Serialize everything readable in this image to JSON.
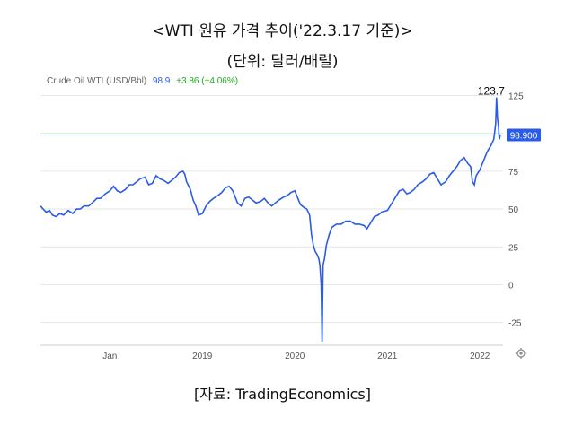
{
  "header": {
    "title": "<WTI 원유 가격 추이('22.3.17 기준)>",
    "subtitle": "(단위: 달러/배럴)"
  },
  "footer": {
    "source": "[자료: TradingEconomics]"
  },
  "legend": {
    "name": "Crude Oil WTI (USD/Bbl)",
    "last": "98.9",
    "change": "+3.86 (+4.06%)"
  },
  "colors": {
    "line": "#2b5ce6",
    "up": "#22aa22",
    "grid": "#e6e6e6",
    "price_tag_bg": "#2b5ce6"
  },
  "icons": {
    "settings": "gear-icon"
  },
  "chart_data": {
    "type": "line",
    "ylim": [
      -40,
      130
    ],
    "y_ticks": [
      125,
      100,
      75,
      50,
      25,
      0,
      -25
    ],
    "x_ticks": [
      {
        "label": "Jan",
        "x": 2018.0
      },
      {
        "label": "2019",
        "x": 2019.0
      },
      {
        "label": "2020",
        "x": 2020.0
      },
      {
        "label": "2021",
        "x": 2021.0
      },
      {
        "label": "2022",
        "x": 2022.0
      }
    ],
    "xlim": [
      2017.25,
      2022.25
    ],
    "last_value": 98.9,
    "last_value_label": "98.900",
    "annotation": {
      "label": "123.7",
      "x": 2022.18,
      "y": 123.7
    },
    "series": [
      {
        "values": [
          [
            2017.25,
            52
          ],
          [
            2017.28,
            50
          ],
          [
            2017.31,
            48
          ],
          [
            2017.35,
            49
          ],
          [
            2017.38,
            46
          ],
          [
            2017.42,
            45
          ],
          [
            2017.46,
            47
          ],
          [
            2017.5,
            46
          ],
          [
            2017.55,
            49
          ],
          [
            2017.6,
            47
          ],
          [
            2017.64,
            50
          ],
          [
            2017.68,
            50
          ],
          [
            2017.72,
            52
          ],
          [
            2017.77,
            52
          ],
          [
            2017.81,
            54
          ],
          [
            2017.86,
            57
          ],
          [
            2017.9,
            57
          ],
          [
            2017.95,
            60
          ],
          [
            2018.0,
            62
          ],
          [
            2018.04,
            65
          ],
          [
            2018.08,
            62
          ],
          [
            2018.12,
            61
          ],
          [
            2018.17,
            63
          ],
          [
            2018.21,
            66
          ],
          [
            2018.25,
            66
          ],
          [
            2018.29,
            68
          ],
          [
            2018.33,
            70
          ],
          [
            2018.38,
            71
          ],
          [
            2018.42,
            66
          ],
          [
            2018.46,
            67
          ],
          [
            2018.5,
            72
          ],
          [
            2018.54,
            70
          ],
          [
            2018.58,
            69
          ],
          [
            2018.63,
            67
          ],
          [
            2018.67,
            69
          ],
          [
            2018.71,
            71
          ],
          [
            2018.75,
            74
          ],
          [
            2018.79,
            75
          ],
          [
            2018.81,
            73
          ],
          [
            2018.83,
            68
          ],
          [
            2018.87,
            63
          ],
          [
            2018.9,
            56
          ],
          [
            2018.93,
            52
          ],
          [
            2018.96,
            46
          ],
          [
            2019.0,
            47
          ],
          [
            2019.04,
            52
          ],
          [
            2019.08,
            55
          ],
          [
            2019.12,
            57
          ],
          [
            2019.17,
            59
          ],
          [
            2019.21,
            61
          ],
          [
            2019.25,
            64
          ],
          [
            2019.29,
            65
          ],
          [
            2019.33,
            62
          ],
          [
            2019.38,
            54
          ],
          [
            2019.42,
            52
          ],
          [
            2019.46,
            57
          ],
          [
            2019.5,
            58
          ],
          [
            2019.54,
            56
          ],
          [
            2019.58,
            54
          ],
          [
            2019.63,
            55
          ],
          [
            2019.67,
            57
          ],
          [
            2019.71,
            54
          ],
          [
            2019.75,
            52
          ],
          [
            2019.79,
            54
          ],
          [
            2019.83,
            56
          ],
          [
            2019.88,
            58
          ],
          [
            2019.92,
            59
          ],
          [
            2019.96,
            61
          ],
          [
            2020.0,
            62
          ],
          [
            2020.02,
            59
          ],
          [
            2020.06,
            53
          ],
          [
            2020.1,
            51
          ],
          [
            2020.13,
            50
          ],
          [
            2020.16,
            46
          ],
          [
            2020.18,
            33
          ],
          [
            2020.2,
            26
          ],
          [
            2020.22,
            22
          ],
          [
            2020.24,
            20
          ],
          [
            2020.26,
            17
          ],
          [
            2020.27,
            13
          ],
          [
            2020.285,
            0
          ],
          [
            2020.295,
            -37.6
          ],
          [
            2020.305,
            13
          ],
          [
            2020.32,
            17
          ],
          [
            2020.34,
            26
          ],
          [
            2020.37,
            33
          ],
          [
            2020.4,
            38
          ],
          [
            2020.45,
            40
          ],
          [
            2020.5,
            40
          ],
          [
            2020.55,
            42
          ],
          [
            2020.6,
            42
          ],
          [
            2020.65,
            40
          ],
          [
            2020.7,
            40
          ],
          [
            2020.75,
            39
          ],
          [
            2020.78,
            37
          ],
          [
            2020.82,
            41
          ],
          [
            2020.86,
            45
          ],
          [
            2020.9,
            46
          ],
          [
            2020.94,
            48
          ],
          [
            2021.0,
            49
          ],
          [
            2021.04,
            53
          ],
          [
            2021.08,
            57
          ],
          [
            2021.13,
            62
          ],
          [
            2021.17,
            63
          ],
          [
            2021.21,
            60
          ],
          [
            2021.25,
            61
          ],
          [
            2021.29,
            63
          ],
          [
            2021.33,
            66
          ],
          [
            2021.38,
            68
          ],
          [
            2021.42,
            70
          ],
          [
            2021.46,
            73
          ],
          [
            2021.5,
            74
          ],
          [
            2021.54,
            70
          ],
          [
            2021.58,
            66
          ],
          [
            2021.63,
            68
          ],
          [
            2021.67,
            72
          ],
          [
            2021.71,
            75
          ],
          [
            2021.75,
            78
          ],
          [
            2021.79,
            82
          ],
          [
            2021.83,
            84
          ],
          [
            2021.87,
            80
          ],
          [
            2021.9,
            78
          ],
          [
            2021.92,
            68
          ],
          [
            2021.94,
            66
          ],
          [
            2021.96,
            72
          ],
          [
            2022.0,
            76
          ],
          [
            2022.04,
            82
          ],
          [
            2022.08,
            88
          ],
          [
            2022.12,
            92
          ],
          [
            2022.15,
            96
          ],
          [
            2022.17,
            106
          ],
          [
            2022.18,
            123.7
          ],
          [
            2022.19,
            110
          ],
          [
            2022.2,
            105
          ],
          [
            2022.21,
            96
          ],
          [
            2022.22,
            98.9
          ]
        ]
      }
    ]
  }
}
